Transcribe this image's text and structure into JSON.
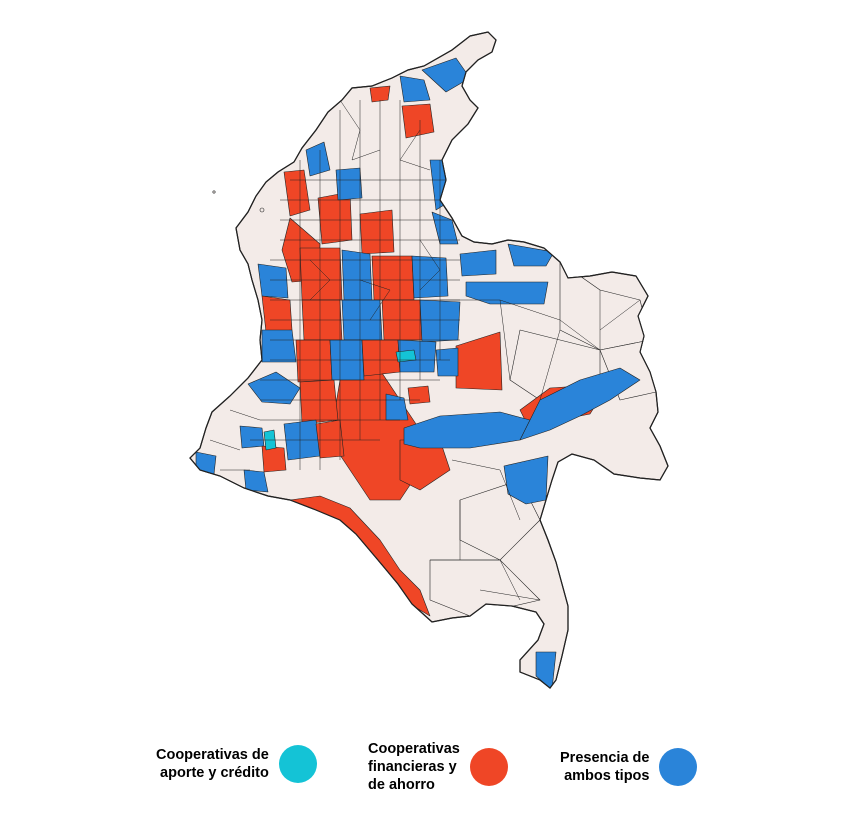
{
  "colors": {
    "background": "#ffffff",
    "none": "#f3ebe8",
    "aporte_credito": "#14c3d6",
    "financieras_ahorro": "#ef4626",
    "ambos": "#2a84d9",
    "border": "#222222"
  },
  "legend": [
    {
      "lines": [
        "Cooperativas de",
        "aporte y crédito"
      ],
      "color": "#14c3d6"
    },
    {
      "lines": [
        "Cooperativas",
        "financieras y",
        "de ahorro"
      ],
      "color": "#ef4626"
    },
    {
      "lines": [
        "Presencia de",
        "ambos tipos"
      ],
      "color": "#2a84d9"
    }
  ]
}
